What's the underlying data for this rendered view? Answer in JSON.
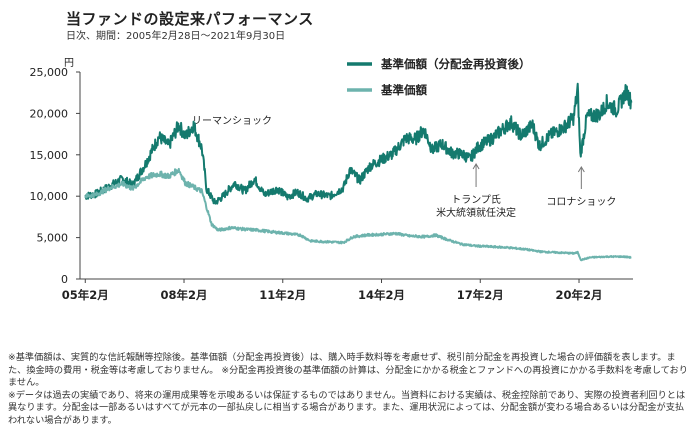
{
  "header": {
    "title": "当ファンドの設定来パフォーマンス",
    "subtitle": "日次、期間：2005年2月28日〜2021年9月30日"
  },
  "colors": {
    "reinvested": "#147a6e",
    "nav": "#6db3ad",
    "axis": "#444444",
    "annotation_arrow": "#777777"
  },
  "chart_data": {
    "type": "line",
    "y_unit": "円",
    "ylim": [
      0,
      25000
    ],
    "yticks": [
      "0",
      "5,000",
      "10,000",
      "15,000",
      "20,000",
      "25,000"
    ],
    "ytick_values": [
      0,
      5000,
      10000,
      15000,
      20000,
      25000
    ],
    "xlim": [
      2005.0,
      2021.8
    ],
    "xticks": [
      "05年2月",
      "08年2月",
      "11年2月",
      "14年2月",
      "17年2月",
      "20年2月"
    ],
    "xtick_values": [
      2005.16,
      2008.16,
      2011.16,
      2014.16,
      2017.16,
      2020.16
    ],
    "grid": false,
    "legend_position": "top-right",
    "series": [
      {
        "name": "基準価額（分配金再投資後）",
        "points": [
          [
            2005.16,
            10000
          ],
          [
            2005.5,
            10300
          ],
          [
            2005.9,
            11200
          ],
          [
            2006.3,
            12100
          ],
          [
            2006.6,
            11300
          ],
          [
            2007.0,
            14000
          ],
          [
            2007.4,
            17200
          ],
          [
            2007.7,
            16100
          ],
          [
            2008.0,
            18600
          ],
          [
            2008.2,
            17200
          ],
          [
            2008.45,
            18600
          ],
          [
            2008.7,
            15800
          ],
          [
            2008.85,
            10800
          ],
          [
            2009.1,
            9200
          ],
          [
            2009.35,
            10000
          ],
          [
            2009.7,
            11600
          ],
          [
            2010.0,
            10600
          ],
          [
            2010.3,
            12100
          ],
          [
            2010.6,
            10200
          ],
          [
            2011.0,
            10900
          ],
          [
            2011.3,
            9900
          ],
          [
            2011.6,
            10500
          ],
          [
            2011.9,
            9700
          ],
          [
            2012.2,
            10300
          ],
          [
            2012.6,
            10000
          ],
          [
            2013.0,
            11000
          ],
          [
            2013.2,
            13200
          ],
          [
            2013.5,
            11900
          ],
          [
            2013.8,
            13600
          ],
          [
            2014.1,
            14300
          ],
          [
            2014.5,
            15100
          ],
          [
            2014.9,
            17000
          ],
          [
            2015.2,
            16900
          ],
          [
            2015.45,
            18100
          ],
          [
            2015.7,
            15600
          ],
          [
            2016.0,
            16300
          ],
          [
            2016.3,
            15200
          ],
          [
            2016.6,
            15100
          ],
          [
            2016.85,
            14500
          ],
          [
            2017.1,
            16000
          ],
          [
            2017.5,
            16900
          ],
          [
            2017.9,
            18300
          ],
          [
            2018.1,
            18900
          ],
          [
            2018.4,
            17300
          ],
          [
            2018.75,
            18600
          ],
          [
            2018.95,
            16100
          ],
          [
            2019.3,
            17400
          ],
          [
            2019.7,
            18300
          ],
          [
            2020.0,
            19500
          ],
          [
            2020.12,
            23000
          ],
          [
            2020.2,
            14900
          ],
          [
            2020.4,
            19600
          ],
          [
            2020.8,
            19900
          ],
          [
            2021.0,
            21300
          ],
          [
            2021.3,
            20400
          ],
          [
            2021.6,
            22700
          ],
          [
            2021.75,
            21300
          ]
        ]
      },
      {
        "name": "基準価額",
        "points": [
          [
            2005.16,
            10000
          ],
          [
            2005.5,
            10200
          ],
          [
            2005.9,
            11000
          ],
          [
            2006.3,
            11500
          ],
          [
            2006.6,
            10900
          ],
          [
            2007.0,
            12300
          ],
          [
            2007.4,
            12700
          ],
          [
            2007.7,
            12400
          ],
          [
            2008.0,
            13200
          ],
          [
            2008.2,
            11600
          ],
          [
            2008.5,
            11000
          ],
          [
            2008.7,
            10600
          ],
          [
            2008.85,
            8600
          ],
          [
            2009.0,
            6600
          ],
          [
            2009.2,
            5900
          ],
          [
            2009.6,
            6200
          ],
          [
            2010.0,
            6000
          ],
          [
            2010.4,
            5900
          ],
          [
            2010.8,
            5700
          ],
          [
            2011.3,
            5500
          ],
          [
            2011.7,
            5300
          ],
          [
            2012.0,
            4600
          ],
          [
            2012.5,
            4500
          ],
          [
            2013.0,
            4400
          ],
          [
            2013.3,
            5100
          ],
          [
            2013.7,
            5300
          ],
          [
            2014.2,
            5400
          ],
          [
            2014.6,
            5500
          ],
          [
            2015.0,
            5200
          ],
          [
            2015.5,
            5100
          ],
          [
            2015.8,
            5300
          ],
          [
            2016.2,
            4700
          ],
          [
            2016.6,
            4200
          ],
          [
            2017.0,
            4000
          ],
          [
            2017.5,
            3900
          ],
          [
            2018.0,
            3800
          ],
          [
            2018.5,
            3600
          ],
          [
            2019.0,
            3300
          ],
          [
            2019.5,
            3200
          ],
          [
            2020.0,
            3100
          ],
          [
            2020.12,
            3200
          ],
          [
            2020.22,
            2300
          ],
          [
            2020.5,
            2600
          ],
          [
            2021.0,
            2700
          ],
          [
            2021.5,
            2700
          ],
          [
            2021.75,
            2600
          ]
        ]
      }
    ],
    "annotations": [
      {
        "label": "リーマンショック",
        "x": 2008.7
      },
      {
        "label": "トランプ氏\n米大統領就任決定",
        "x": 2016.85
      },
      {
        "label": "コロナショック",
        "x": 2020.2
      }
    ]
  },
  "notes": [
    "※基準価額は、実質的な信託報酬等控除後。基準価額（分配金再投資後）は、購入時手数料等を考慮せず、税引前分配金を再投資した場合の評価額を表します。また、換金時の費用・税金等は考慮しておりません。 ※分配金再投資後の基準価額の計算は、分配金にかかる税金とファンドへの再投資にかかる手数料を考慮しておりません。",
    "※データは過去の実績であり、将来の運用成果等を示唆あるいは保証するものではありません。当資料における実績は、税金控除前であり、実際の投資者利回りとは異なります。分配金は一部あるいはすべてが元本の一部払戻しに相当する場合があります。また、運用状況によっては、分配金額が変わる場合あるいは分配金が支払われない場合があります。"
  ]
}
